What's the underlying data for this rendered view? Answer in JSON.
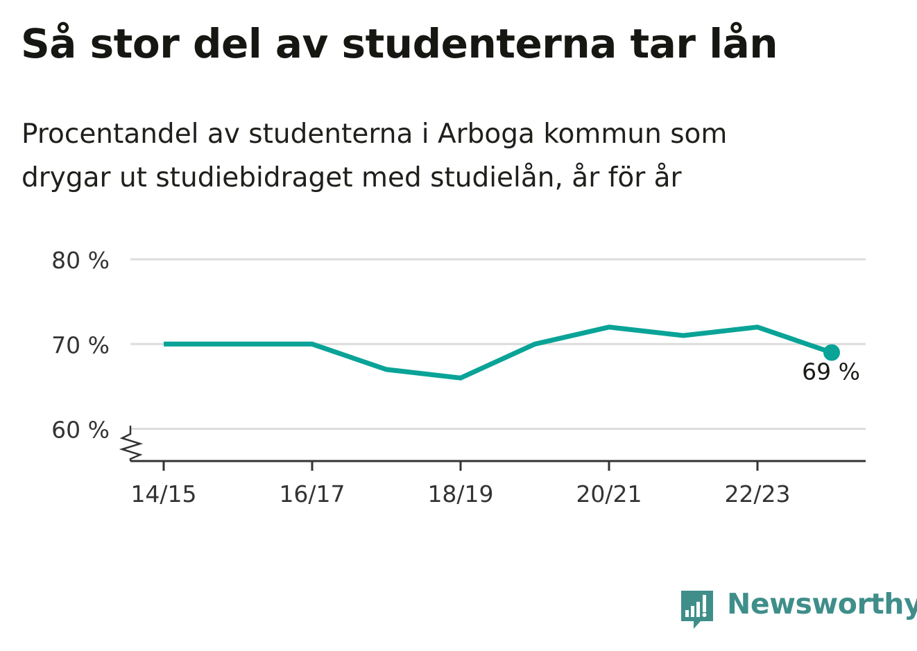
{
  "title": "Så stor del av studenterna tar lån",
  "subtitle_lines": [
    "Procentandel av studenterna i Arboga kommun som",
    "drygar ut studiebidraget med studielån, år för år"
  ],
  "brand": {
    "name": "Newsworthy",
    "color": "#3f8e8a",
    "icon": "bar-chart-speech-bubble-icon"
  },
  "colors": {
    "line": "#09a397",
    "grid": "#dcdcdc",
    "axis": "#333333",
    "text": "#1a1a17"
  },
  "chart_data": {
    "type": "line",
    "x": [
      "14/15",
      "15/16",
      "16/17",
      "17/18",
      "18/19",
      "19/20",
      "20/21",
      "21/22",
      "22/23",
      "23/24"
    ],
    "series": [
      {
        "values": [
          70,
          70,
          70,
          67,
          66,
          70,
          72,
          71,
          72,
          69
        ]
      }
    ],
    "x_tick_labels": [
      "14/15",
      "16/17",
      "18/19",
      "20/21",
      "22/23"
    ],
    "y_ticks": [
      60,
      70,
      80
    ],
    "y_tick_labels": [
      "60 %",
      "70 %",
      "80 %"
    ],
    "ylim": [
      56.2,
      80
    ],
    "y_axis_break": true,
    "grid": true,
    "legend": "none",
    "end_label": "69 %"
  }
}
